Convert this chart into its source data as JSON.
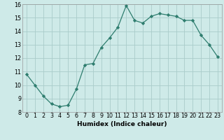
{
  "x": [
    0,
    1,
    2,
    3,
    4,
    5,
    6,
    7,
    8,
    9,
    10,
    11,
    12,
    13,
    14,
    15,
    16,
    17,
    18,
    19,
    20,
    21,
    22,
    23
  ],
  "y": [
    10.8,
    10.0,
    9.2,
    8.6,
    8.4,
    8.5,
    9.7,
    11.5,
    11.6,
    12.8,
    13.5,
    14.3,
    15.9,
    14.8,
    14.6,
    15.1,
    15.3,
    15.2,
    15.1,
    14.8,
    14.8,
    13.7,
    13.0,
    12.1
  ],
  "xlabel": "Humidex (Indice chaleur)",
  "ylabel": "",
  "ylim": [
    8,
    16
  ],
  "xlim": [
    -0.5,
    23.5
  ],
  "yticks": [
    8,
    9,
    10,
    11,
    12,
    13,
    14,
    15,
    16
  ],
  "xticks": [
    0,
    1,
    2,
    3,
    4,
    5,
    6,
    7,
    8,
    9,
    10,
    11,
    12,
    13,
    14,
    15,
    16,
    17,
    18,
    19,
    20,
    21,
    22,
    23
  ],
  "line_color": "#2e7d6e",
  "marker": "D",
  "marker_size": 2.2,
  "bg_color": "#ceeae8",
  "grid_color": "#aaccca",
  "label_fontsize": 6.5,
  "tick_fontsize": 5.8
}
